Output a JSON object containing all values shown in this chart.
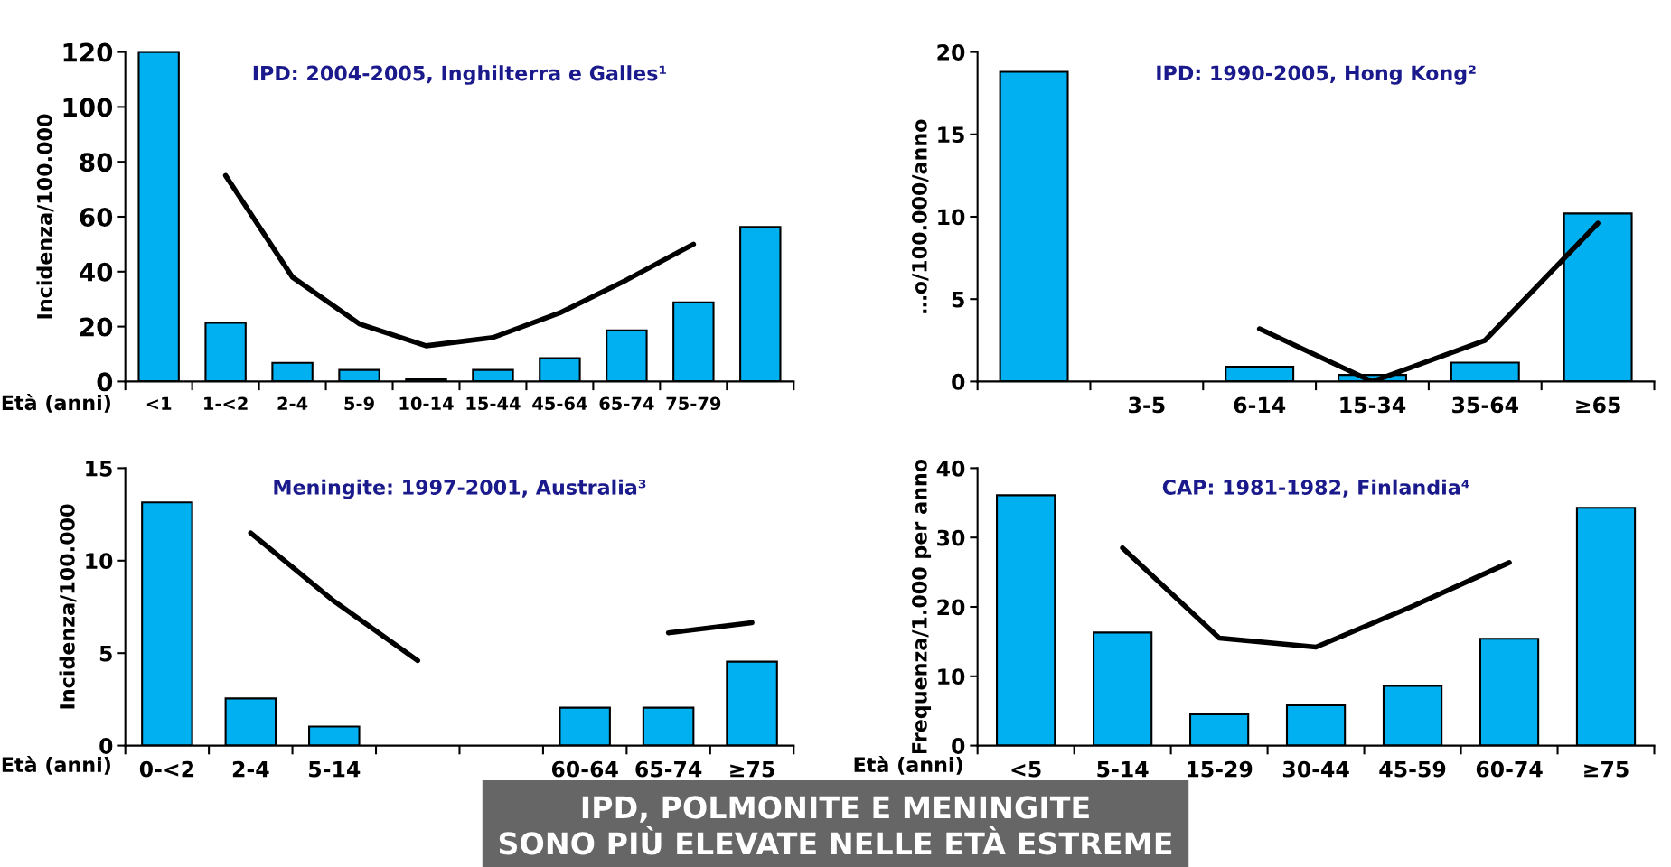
{
  "chart_data": [
    {
      "type": "bar",
      "title": "IPD: 2004-2005, Inghilterra e Galles¹",
      "ylabel": "Incidenza/100.000",
      "xlabel": "Età (anni)",
      "categories": [
        "<1",
        "1-<2",
        "2-4",
        "5-9",
        "10-14",
        "15-44",
        "45-64",
        "65-74",
        "75-79",
        null
      ],
      "ylim": [
        0,
        120
      ],
      "yticks": [
        0,
        20,
        40,
        60,
        80,
        100,
        120
      ],
      "series": [
        {
          "color": "#00b0f0",
          "values": [
            120,
            21.4,
            6.8,
            4.2,
            0.8,
            4.2,
            8.5,
            18.6,
            28.8,
            56.3
          ]
        },
        {
          "type": "line",
          "color": "#000000",
          "values": [
            null,
            75,
            38,
            21,
            13,
            16,
            25,
            37,
            50,
            null
          ]
        }
      ],
      "annotations": [
        "IPD, POLMONITE E MENINGITE\nSONO PIÙ ELEVATE NELLE ETÀ ESTREME"
      ]
    },
    {
      "type": "bar",
      "title": "IPD: 1990-2005, Hong Kong²",
      "ylabel": "…o/100.000/anno",
      "categories": [
        null,
        "3-5",
        "6-14",
        "15-34",
        "35-64",
        "≥65"
      ],
      "ylim": [
        0,
        20
      ],
      "yticks": [
        0,
        5,
        10,
        15,
        20
      ],
      "series": [
        {
          "color": "#00b0f0",
          "values": [
            18.8,
            null,
            0.9,
            0.4,
            1.15,
            10.2
          ]
        },
        {
          "type": "line",
          "color": "#000000",
          "values": [
            null,
            null,
            3.2,
            0,
            2.5,
            9.6
          ]
        }
      ]
    },
    {
      "type": "bar",
      "title": "Meningite: 1997-2001, Australia³",
      "ylabel": "Incidenza/100.000",
      "xlabel": "Età (anni)",
      "categories": [
        "0-<2",
        "2-4",
        "5-14",
        null,
        null,
        "60-64",
        "65-74",
        "≥75"
      ],
      "ylim": [
        0,
        15
      ],
      "yticks": [
        0,
        5,
        10,
        15
      ],
      "series": [
        {
          "color": "#00b0f0",
          "values": [
            13.15,
            2.55,
            1.03,
            null,
            null,
            2.05,
            2.05,
            4.54
          ]
        },
        {
          "type": "line",
          "color": "#000000",
          "values": [
            null,
            11.5,
            7.8,
            4.6,
            null,
            null,
            6.1,
            6.65
          ]
        }
      ]
    },
    {
      "type": "bar",
      "title": "CAP: 1981-1982, Finlandia⁴",
      "ylabel": "Frequenza/1.000 per anno",
      "xlabel": "Età (anni)",
      "categories": [
        "<5",
        "5-14",
        "15-29",
        "30-44",
        "45-59",
        "60-74",
        "≥75"
      ],
      "ylim": [
        0,
        40
      ],
      "yticks": [
        0,
        10,
        20,
        30,
        40
      ],
      "series": [
        {
          "color": "#00b0f0",
          "values": [
            36.1,
            16.3,
            4.5,
            5.8,
            8.6,
            15.4,
            34.3
          ]
        },
        {
          "type": "line",
          "color": "#000000",
          "values": [
            null,
            28.5,
            15.5,
            14.2,
            20.1,
            26.4,
            null
          ]
        }
      ]
    }
  ]
}
